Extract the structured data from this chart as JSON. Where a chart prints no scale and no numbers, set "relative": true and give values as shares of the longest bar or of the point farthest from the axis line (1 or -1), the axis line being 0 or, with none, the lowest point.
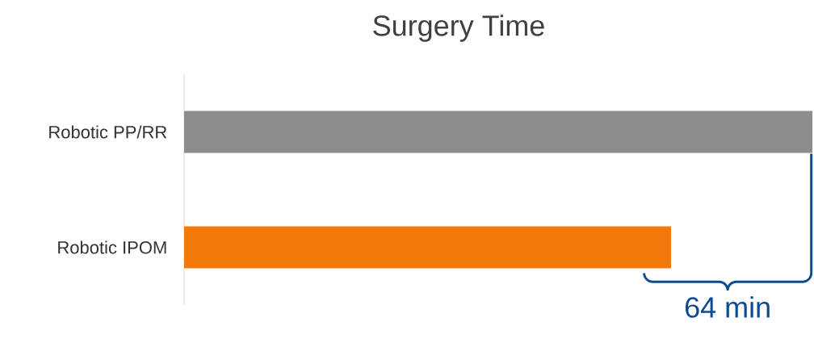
{
  "chart_data": {
    "type": "bar",
    "orientation": "horizontal",
    "relative": true,
    "title": "Surgery Time",
    "categories": [
      "Robotic PP/RR",
      "Robotic IPOM"
    ],
    "values": [
      1,
      0.775
    ],
    "colors": [
      "#8c8c8c",
      "#f4790b"
    ],
    "annotations": [
      "64 min"
    ]
  }
}
